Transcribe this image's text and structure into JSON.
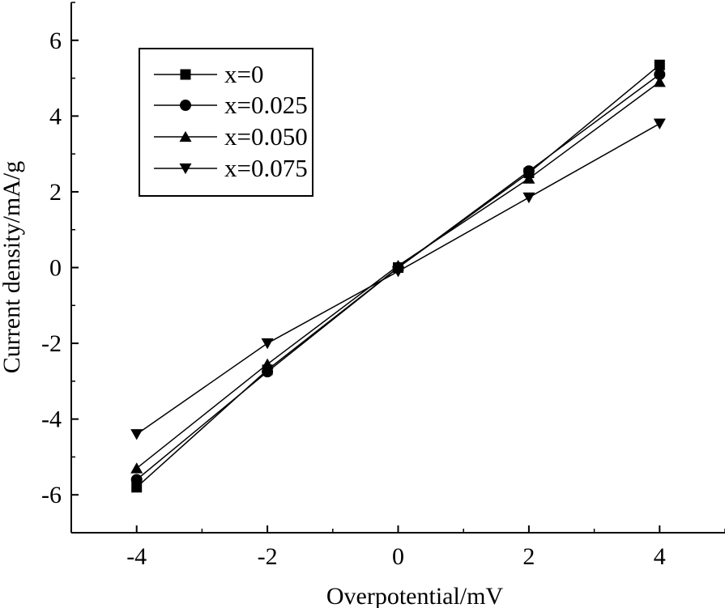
{
  "chart_data": {
    "type": "line",
    "title": "",
    "xlabel": "Overpotential/mV",
    "ylabel": "Current density/mA/g",
    "xlim": [
      -5,
      5
    ],
    "ylim": [
      -7,
      7
    ],
    "x": [
      -4,
      -2,
      0,
      2,
      4
    ],
    "xticks": [
      "-4",
      "-2",
      "0",
      "2",
      "4"
    ],
    "yticks": [
      "6",
      "4",
      "2",
      "0",
      "-2",
      "-4",
      "-6"
    ],
    "xtick_values": [
      -4,
      -2,
      0,
      2,
      4
    ],
    "ytick_values": [
      6,
      4,
      2,
      0,
      -2,
      -4,
      -6
    ],
    "grid": false,
    "legend_position": "top-left",
    "series": [
      {
        "name": "x=0",
        "marker": "square",
        "values": [
          -5.8,
          -2.7,
          0.0,
          2.5,
          5.35
        ]
      },
      {
        "name": "x=0.025",
        "marker": "circle",
        "values": [
          -5.6,
          -2.75,
          0.0,
          2.55,
          5.1
        ]
      },
      {
        "name": "x=0.050",
        "marker": "triangle-up",
        "values": [
          -5.3,
          -2.55,
          0.05,
          2.35,
          4.9
        ]
      },
      {
        "name": "x=0.075",
        "marker": "triangle-down",
        "values": [
          -4.4,
          -2.0,
          -0.1,
          1.85,
          3.8
        ]
      }
    ]
  }
}
